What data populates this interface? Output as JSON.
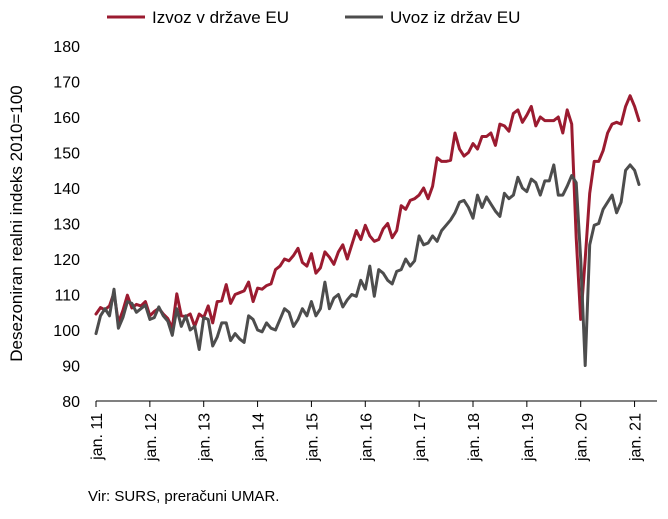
{
  "chart_data": {
    "type": "line",
    "ylabel": "Desezoniran realni indeks 2010=100",
    "ylim": [
      80,
      180
    ],
    "yticks": [
      80,
      90,
      100,
      110,
      120,
      130,
      140,
      150,
      160,
      170,
      180
    ],
    "xlim": [
      2011.0,
      2021.4167
    ],
    "xticks": [
      {
        "label": "jan. 11",
        "value": 2011
      },
      {
        "label": "jan. 12",
        "value": 2012
      },
      {
        "label": "jan. 13",
        "value": 2013
      },
      {
        "label": "jan. 14",
        "value": 2014
      },
      {
        "label": "jan. 15",
        "value": 2015
      },
      {
        "label": "jan. 16",
        "value": 2016
      },
      {
        "label": "jan. 17",
        "value": 2017
      },
      {
        "label": "jan. 18",
        "value": 2018
      },
      {
        "label": "jan. 19",
        "value": 2019
      },
      {
        "label": "jan. 20",
        "value": 2020
      },
      {
        "label": "jan. 21",
        "value": 2021
      }
    ],
    "grid": false,
    "legend_position": "top",
    "series": [
      {
        "name": "Izvoz v države EU",
        "color": "#9b1b30",
        "x_start": "2011-01",
        "frequency": "monthly",
        "values": [
          104.5,
          106.3,
          105.7,
          106.8,
          110.5,
          102.0,
          105.5,
          109.8,
          106.2,
          107.2,
          106.8,
          108.0,
          104.0,
          105.2,
          106.1,
          104.5,
          103.2,
          100.5,
          110.2,
          104.0,
          103.8,
          104.5,
          101.0,
          104.5,
          103.5,
          106.8,
          102.0,
          108.0,
          108.2,
          112.8,
          107.5,
          110.0,
          110.5,
          111.0,
          113.5,
          108.0,
          111.8,
          111.5,
          112.5,
          113.0,
          117.0,
          118.0,
          120.0,
          119.5,
          121.0,
          123.0,
          119.0,
          118.0,
          121.5,
          116.0,
          117.5,
          122.0,
          120.5,
          118.5,
          122.0,
          124.0,
          120.0,
          124.0,
          128.0,
          125.5,
          129.5,
          126.5,
          125.0,
          125.5,
          128.5,
          130.0,
          126.0,
          128.0,
          135.0,
          134.0,
          136.5,
          137.0,
          138.0,
          140.0,
          137.0,
          140.5,
          148.5,
          147.5,
          147.5,
          147.8,
          155.5,
          151.0,
          149.0,
          150.0,
          152.5,
          151.0,
          154.5,
          154.5,
          155.5,
          152.0,
          158.0,
          157.5,
          156.0,
          161.0,
          162.0,
          158.5,
          160.5,
          163.0,
          157.5,
          160.0,
          159.0,
          159.0,
          159.0,
          160.0,
          155.5,
          162.0,
          158.0,
          126.0,
          103.0,
          120.0,
          138.5,
          147.5,
          147.5,
          150.5,
          155.5,
          158.0,
          158.5,
          158.0,
          163.0,
          166.0,
          163.0,
          159.0
        ]
      },
      {
        "name": "Uvoz iz držav EU",
        "color": "#4d4d4d",
        "x_start": "2011-01",
        "frequency": "monthly",
        "values": [
          99.0,
          104.0,
          106.0,
          104.0,
          111.5,
          100.5,
          103.5,
          108.0,
          107.5,
          105.0,
          106.0,
          107.0,
          103.0,
          103.5,
          106.5,
          104.0,
          102.5,
          98.5,
          106.0,
          101.0,
          104.0,
          100.0,
          101.0,
          94.5,
          103.5,
          103.0,
          95.5,
          98.0,
          102.0,
          102.0,
          97.0,
          99.0,
          97.5,
          96.5,
          104.0,
          103.0,
          100.0,
          99.5,
          102.0,
          100.5,
          100.0,
          103.0,
          106.0,
          105.0,
          101.0,
          103.0,
          106.0,
          104.0,
          108.0,
          104.0,
          106.0,
          113.5,
          106.0,
          109.0,
          110.0,
          106.5,
          108.5,
          110.0,
          109.5,
          114.0,
          111.5,
          118.0,
          109.5,
          117.0,
          116.0,
          114.0,
          113.0,
          116.5,
          117.0,
          120.0,
          118.0,
          119.5,
          126.5,
          124.0,
          124.5,
          126.5,
          125.0,
          128.0,
          129.5,
          131.0,
          133.0,
          136.0,
          136.5,
          134.5,
          131.5,
          138.0,
          134.5,
          137.5,
          135.5,
          133.5,
          132.0,
          138.5,
          137.0,
          138.0,
          143.0,
          140.0,
          139.0,
          142.5,
          141.5,
          138.0,
          142.0,
          142.0,
          146.5,
          138.0,
          138.0,
          140.5,
          143.5,
          141.5,
          120.0,
          90.0,
          124.0,
          129.5,
          130.0,
          134.0,
          136.0,
          138.0,
          133.0,
          136.0,
          145.0,
          146.5,
          145.0,
          141.0
        ]
      }
    ]
  },
  "source": "Vir: SURS, preračuni UMAR."
}
